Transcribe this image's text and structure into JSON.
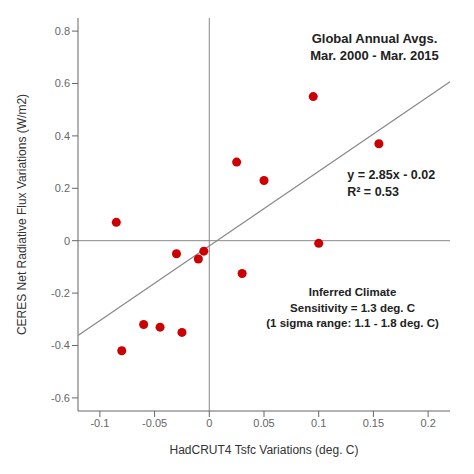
{
  "chart_data": {
    "type": "scatter",
    "xlabel": "HadCRUT4 Tsfc Variations (deg. C)",
    "ylabel": "CERES Net Radiative Flux Variations (W/m2)",
    "series": [
      {
        "type": "line",
        "color": "#888888",
        "x": [
          -0.12,
          0.22
        ],
        "values": [
          -0.362,
          0.607
        ]
      },
      {
        "type": "scatter",
        "color": "#cc0000",
        "x": [
          -0.085,
          -0.08,
          -0.06,
          -0.045,
          -0.03,
          -0.025,
          -0.01,
          -0.005,
          0.025,
          0.03,
          0.05,
          0.095,
          0.1,
          0.155
        ],
        "values": [
          0.07,
          -0.42,
          -0.32,
          -0.33,
          -0.05,
          -0.35,
          -0.07,
          -0.04,
          0.3,
          -0.125,
          0.23,
          0.55,
          -0.01,
          0.37
        ]
      }
    ],
    "annotations": [
      {
        "text": "Global Annual Avgs.\nMar. 2000 - Mar. 2015"
      },
      {
        "text": "y = 2.85x - 0.02\nR² = 0.53"
      },
      {
        "text": "Inferred Climate\nSensitivity = 1.3 deg. C\n(1 sigma range: 1.1 - 1.8 deg. C)"
      }
    ],
    "xlim": [
      -0.12,
      0.22
    ],
    "ylim": [
      -0.65,
      0.85
    ],
    "xticks": [
      -0.1,
      -0.05,
      0.0,
      0.05,
      0.1,
      0.15,
      0.2
    ],
    "yticks": [
      -0.6,
      -0.4,
      -0.2,
      0.0,
      0.2,
      0.4,
      0.6,
      0.8
    ],
    "grid": false
  }
}
